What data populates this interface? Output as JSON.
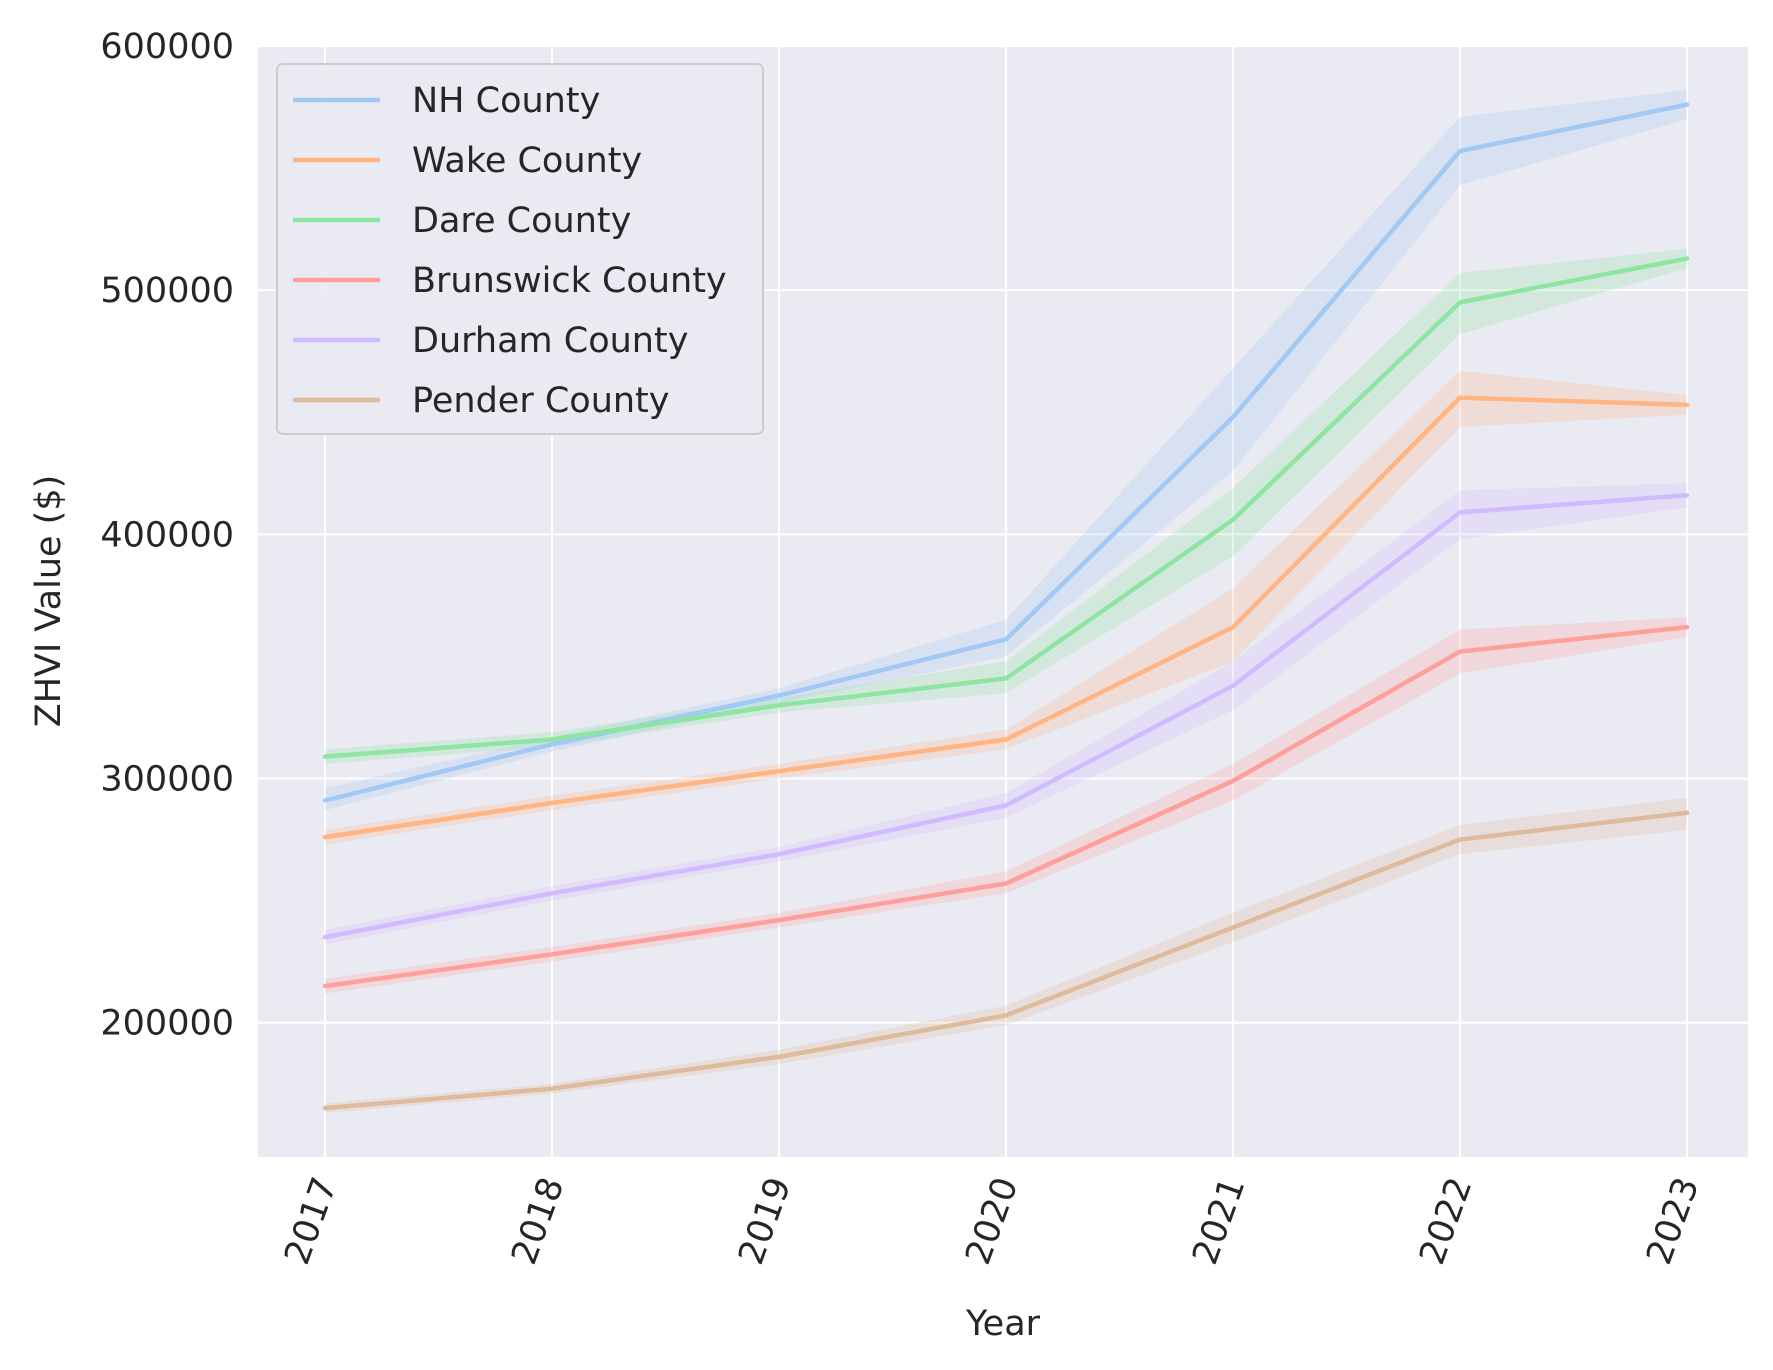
{
  "chart_data": {
    "type": "line",
    "title": "",
    "xlabel": "Year",
    "ylabel": "ZHVI Value ($)",
    "x": [
      "2017",
      "2018",
      "2019",
      "2020",
      "2021",
      "2022",
      "2023"
    ],
    "ylim": [
      145000,
      600000
    ],
    "yticks": [
      200000,
      300000,
      400000,
      500000,
      600000
    ],
    "grid": true,
    "legend_position": "top-left",
    "series": [
      {
        "name": "NH County",
        "color": "#a1c9f4",
        "values": [
          291000,
          314000,
          334000,
          357000,
          448000,
          557000,
          576000
        ],
        "lower": [
          287000,
          311000,
          331000,
          350000,
          426000,
          543000,
          570000
        ],
        "upper": [
          296000,
          317000,
          337000,
          365000,
          468000,
          571000,
          582000
        ]
      },
      {
        "name": "Wake County",
        "color": "#ffb482",
        "values": [
          276000,
          290000,
          303000,
          316000,
          362000,
          456000,
          453000
        ],
        "lower": [
          273000,
          287000,
          300000,
          312000,
          348000,
          444000,
          449000
        ],
        "upper": [
          279000,
          293000,
          306000,
          320000,
          378000,
          467000,
          457000
        ]
      },
      {
        "name": "Dare County",
        "color": "#8de5a1",
        "values": [
          309000,
          316000,
          330000,
          341000,
          406000,
          495000,
          513000
        ],
        "lower": [
          306000,
          313000,
          327000,
          335000,
          391000,
          482000,
          509000
        ],
        "upper": [
          312000,
          319000,
          333000,
          348000,
          419000,
          507000,
          517000
        ]
      },
      {
        "name": "Brunswick County",
        "color": "#ff9f9b",
        "values": [
          215000,
          228000,
          242000,
          257000,
          299000,
          352000,
          362000
        ],
        "lower": [
          212000,
          225000,
          239000,
          253000,
          291000,
          343000,
          358000
        ],
        "upper": [
          218000,
          231000,
          245000,
          262000,
          306000,
          361000,
          366000
        ]
      },
      {
        "name": "Durham County",
        "color": "#d0bbff",
        "values": [
          235000,
          253000,
          269000,
          289000,
          338000,
          409000,
          416000
        ],
        "lower": [
          232000,
          250000,
          266000,
          284000,
          328000,
          398000,
          411000
        ],
        "upper": [
          238000,
          256000,
          272000,
          294000,
          348000,
          418000,
          421000
        ]
      },
      {
        "name": "Pender County",
        "color": "#debb9b",
        "values": [
          165000,
          173000,
          186000,
          203000,
          239000,
          275000,
          286000
        ],
        "lower": [
          163000,
          171000,
          183000,
          199000,
          233000,
          269000,
          279000
        ],
        "upper": [
          167000,
          175000,
          189000,
          207000,
          245000,
          281000,
          292000
        ]
      }
    ]
  }
}
